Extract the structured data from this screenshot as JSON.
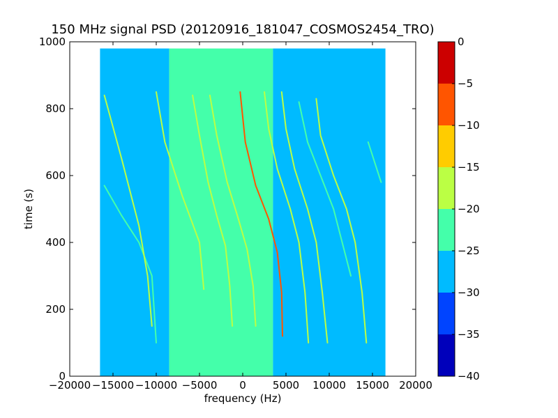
{
  "chart_data": {
    "type": "heatmap",
    "title": "150 MHz signal PSD (20120916_181047_COSMOS2454_TRO)",
    "xlabel": "frequency (Hz)",
    "ylabel": "time (s)",
    "xlim": [
      -20000,
      20000
    ],
    "ylim": [
      0,
      1000
    ],
    "xticks": [
      -20000,
      -15000,
      -10000,
      -5000,
      0,
      5000,
      10000,
      15000,
      20000
    ],
    "yticks": [
      0,
      200,
      400,
      600,
      800,
      1000
    ],
    "data_extent": {
      "freq": [
        -16500,
        16500
      ],
      "time": [
        0,
        980
      ]
    },
    "background_regions": [
      {
        "freq": [
          -16500,
          -8500
        ],
        "level_db": -25
      },
      {
        "freq": [
          -8500,
          3500
        ],
        "level_db": -22
      },
      {
        "freq": [
          3500,
          16500
        ],
        "level_db": -27
      }
    ],
    "traces": [
      {
        "points": [
          [
            -16000,
            570
          ],
          [
            -14000,
            480
          ],
          [
            -12000,
            400
          ],
          [
            -10500,
            300
          ],
          [
            -10000,
            100
          ]
        ],
        "peak_db": -20
      },
      {
        "points": [
          [
            -16000,
            840
          ],
          [
            -14000,
            650
          ],
          [
            -12000,
            450
          ],
          [
            -11000,
            300
          ],
          [
            -10500,
            150
          ]
        ],
        "peak_db": -17
      },
      {
        "points": [
          [
            -10000,
            850
          ],
          [
            -9000,
            700
          ],
          [
            -7000,
            540
          ],
          [
            -5000,
            400
          ],
          [
            -4500,
            260
          ]
        ],
        "peak_db": -18
      },
      {
        "points": [
          [
            -5800,
            840
          ],
          [
            -5000,
            720
          ],
          [
            -4000,
            580
          ],
          [
            -3000,
            480
          ],
          [
            -2000,
            390
          ],
          [
            -1500,
            270
          ],
          [
            -1200,
            150
          ]
        ],
        "peak_db": -15
      },
      {
        "points": [
          [
            -3800,
            840
          ],
          [
            -3000,
            720
          ],
          [
            -1800,
            580
          ],
          [
            -500,
            470
          ],
          [
            500,
            380
          ],
          [
            1200,
            270
          ],
          [
            1500,
            150
          ]
        ],
        "peak_db": -15
      },
      {
        "points": [
          [
            -300,
            850
          ],
          [
            300,
            700
          ],
          [
            1500,
            570
          ],
          [
            3000,
            470
          ],
          [
            4000,
            370
          ],
          [
            4500,
            250
          ],
          [
            4600,
            120
          ]
        ],
        "peak_db": -5
      },
      {
        "points": [
          [
            2500,
            850
          ],
          [
            3000,
            740
          ],
          [
            4000,
            620
          ],
          [
            5500,
            500
          ],
          [
            6500,
            400
          ],
          [
            7200,
            250
          ],
          [
            7600,
            100
          ]
        ],
        "peak_db": -18
      },
      {
        "points": [
          [
            4500,
            850
          ],
          [
            5000,
            740
          ],
          [
            6000,
            620
          ],
          [
            7500,
            500
          ],
          [
            8500,
            400
          ],
          [
            9200,
            250
          ],
          [
            9800,
            100
          ]
        ],
        "peak_db": -15
      },
      {
        "points": [
          [
            6500,
            820
          ],
          [
            7500,
            700
          ],
          [
            9000,
            600
          ],
          [
            10500,
            500
          ],
          [
            11500,
            400
          ],
          [
            12500,
            300
          ]
        ],
        "peak_db": -20
      },
      {
        "points": [
          [
            8500,
            830
          ],
          [
            9000,
            720
          ],
          [
            10500,
            600
          ],
          [
            12000,
            500
          ],
          [
            13000,
            400
          ],
          [
            13800,
            250
          ],
          [
            14300,
            100
          ]
        ],
        "peak_db": -18
      },
      {
        "points": [
          [
            14500,
            700
          ],
          [
            15500,
            620
          ],
          [
            16000,
            580
          ]
        ],
        "peak_db": -20
      }
    ],
    "colorbar": {
      "range": [
        -40,
        0
      ],
      "ticks": [
        0,
        -5,
        -10,
        -15,
        -20,
        -25,
        -30,
        -35,
        -40
      ],
      "bands": [
        {
          "from": -5,
          "to": 0,
          "color": "#cc0000"
        },
        {
          "from": -10,
          "to": -5,
          "color": "#ff5500"
        },
        {
          "from": -15,
          "to": -10,
          "color": "#ffcc00"
        },
        {
          "from": -20,
          "to": -15,
          "color": "#bbff44"
        },
        {
          "from": -25,
          "to": -20,
          "color": "#44ffaa"
        },
        {
          "from": -30,
          "to": -25,
          "color": "#00bbff"
        },
        {
          "from": -35,
          "to": -30,
          "color": "#0044ff"
        },
        {
          "from": -40,
          "to": -35,
          "color": "#0000bb"
        }
      ]
    }
  }
}
